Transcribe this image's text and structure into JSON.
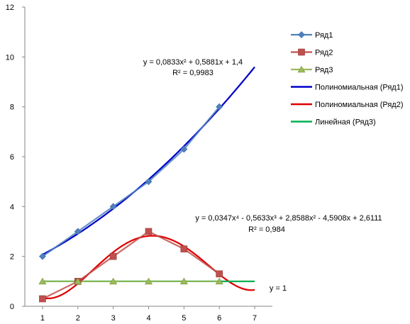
{
  "chart_data": {
    "type": "line",
    "x": [
      1,
      2,
      3,
      4,
      5,
      6
    ],
    "xlim": [
      1,
      7
    ],
    "ylim": [
      0,
      12
    ],
    "x_ticks": [
      "1",
      "2",
      "3",
      "4",
      "5",
      "6",
      "7"
    ],
    "y_ticks": [
      "0",
      "2",
      "4",
      "6",
      "8",
      "10",
      "12"
    ],
    "grid": false,
    "legend_position": "right",
    "series": [
      {
        "name": "Ряд1",
        "values": [
          2,
          3,
          4,
          5,
          6.3,
          8
        ],
        "color": "#4F81BD",
        "marker": "diamond"
      },
      {
        "name": "Ряд2",
        "values": [
          0.3,
          1,
          2,
          3,
          2.3,
          1.3
        ],
        "color": "#C0504D",
        "marker": "square"
      },
      {
        "name": "Ряд3",
        "values": [
          1,
          1,
          1,
          1,
          1,
          1
        ],
        "color": "#9BBB59",
        "marker": "triangle"
      }
    ],
    "trendlines": [
      {
        "name": "Полиномиальная (Ряд1)",
        "type": "polynomial",
        "coefficients": [
          1.4,
          0.5881,
          0.0833
        ],
        "color": "#0000CC"
      },
      {
        "name": "Полиномиальная (Ряд2)",
        "type": "polynomial",
        "coefficients": [
          2.6111,
          -4.5908,
          2.8588,
          -0.5633,
          0.0347
        ],
        "color": "#E00000"
      },
      {
        "name": "Линейная (Ряд3)",
        "type": "linear",
        "coefficients": [
          1,
          0
        ],
        "color": "#00B050"
      }
    ],
    "annotations": {
      "eq1_line1": "y = 0,0833x² + 0,5881x + 1,4",
      "eq1_line2": "R² = 0,9983",
      "eq2_line1": "y = 0,0347x⁴ - 0,5633x³ + 2,8588x² - 4,5908x + 2,6111",
      "eq2_line2": "R² = 0,984",
      "eq3": "y = 1"
    }
  }
}
